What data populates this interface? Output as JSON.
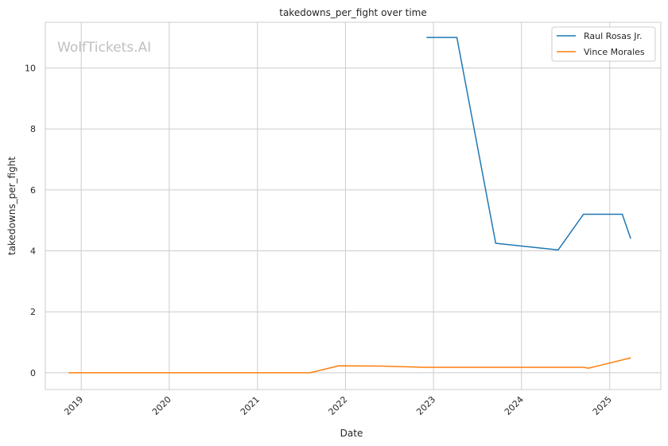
{
  "chart_data": {
    "type": "line",
    "title": "takedowns_per_fight over time",
    "xlabel": "Date",
    "ylabel": "takedowns_per_fight",
    "watermark": "WolfTickets.AI",
    "x_ticks": [
      "2019",
      "2020",
      "2021",
      "2022",
      "2023",
      "2024",
      "2025"
    ],
    "y_ticks": [
      "0",
      "2",
      "4",
      "6",
      "8",
      "10"
    ],
    "xlim": [
      "2018-08-05",
      "2025-08-01"
    ],
    "ylim": [
      -0.55,
      11.5
    ],
    "grid": true,
    "legend_position": "top-right",
    "series": [
      {
        "name": "Raul Rosas Jr.",
        "color": "#1f77b4",
        "points": [
          {
            "x": "2022-12-03",
            "y": 11.0
          },
          {
            "x": "2023-04-08",
            "y": 11.0
          },
          {
            "x": "2023-09-16",
            "y": 4.25
          },
          {
            "x": "2024-06-01",
            "y": 4.03
          },
          {
            "x": "2024-09-14",
            "y": 5.2
          },
          {
            "x": "2025-02-22",
            "y": 5.2
          },
          {
            "x": "2025-03-29",
            "y": 4.4
          }
        ]
      },
      {
        "name": "Vince Morales",
        "color": "#ff7f0e",
        "points": [
          {
            "x": "2018-11-10",
            "y": 0.0
          },
          {
            "x": "2021-08-07",
            "y": 0.0
          },
          {
            "x": "2021-12-04",
            "y": 0.23
          },
          {
            "x": "2022-06-04",
            "y": 0.22
          },
          {
            "x": "2022-11-19",
            "y": 0.18
          },
          {
            "x": "2024-09-14",
            "y": 0.18
          },
          {
            "x": "2024-10-05",
            "y": 0.15
          },
          {
            "x": "2025-03-29",
            "y": 0.49
          }
        ]
      }
    ]
  }
}
